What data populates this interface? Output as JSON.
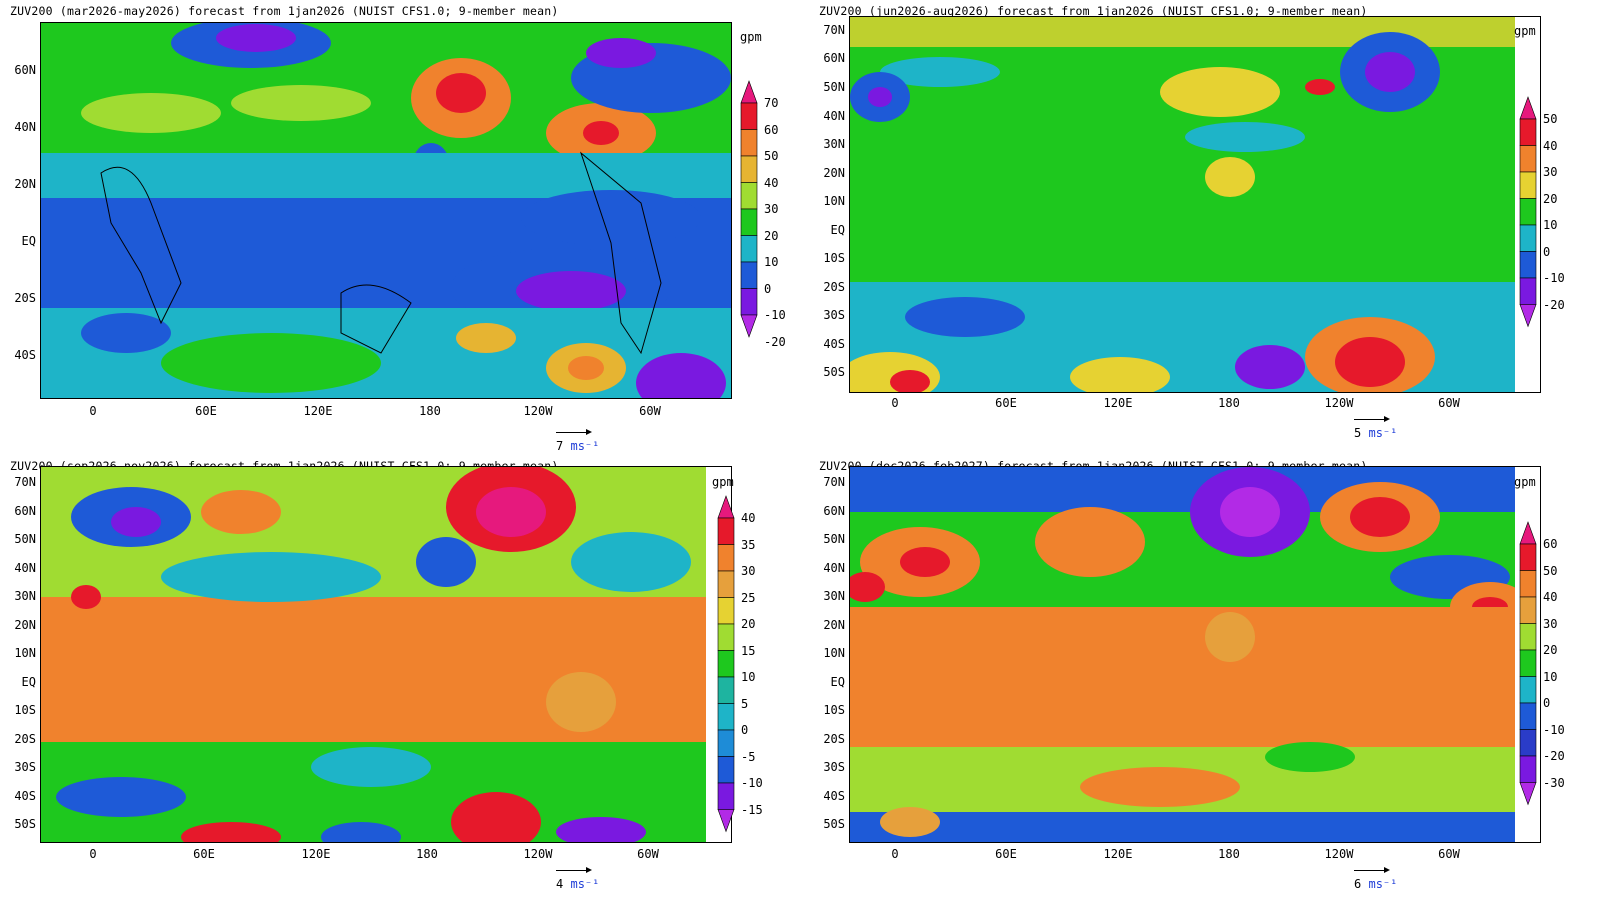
{
  "panels": [
    {
      "title": "ZUV200 (mar2026-may2026) forecast from 1jan2026 (NUIST CFS1.0; 9-member mean)",
      "lat_labels": [
        "60N",
        "40N",
        "20N",
        "EQ",
        "20S",
        "40S"
      ],
      "lon_labels": [
        "0",
        "60E",
        "120E",
        "180",
        "120W",
        "60W"
      ],
      "unit": "gpm",
      "colorbar_levels": [
        "70",
        "60",
        "50",
        "40",
        "30",
        "20",
        "10",
        "0",
        "-10",
        "-20"
      ],
      "colorbar_colors": [
        "#e6197d",
        "#e6192b",
        "#f0822d",
        "#e6b432",
        "#a0dc32",
        "#1ec81e",
        "#1eb4c8",
        "#1e5ad7",
        "#7a19e0",
        "#b22ae6"
      ],
      "vector_ref": "7",
      "vector_unit": "ms⁻¹"
    },
    {
      "title": "ZUV200 (jun2026-aug2026) forecast from 1jan2026 (NUIST CFS1.0; 9-member mean)",
      "lat_labels": [
        "70N",
        "60N",
        "50N",
        "40N",
        "30N",
        "20N",
        "10N",
        "EQ",
        "10S",
        "20S",
        "30S",
        "40S",
        "50S"
      ],
      "lon_labels": [
        "0",
        "60E",
        "120E",
        "180",
        "120W",
        "60W"
      ],
      "unit": "gpm",
      "colorbar_levels": [
        "50",
        "40",
        "30",
        "20",
        "10",
        "0",
        "-10",
        "-20"
      ],
      "colorbar_colors": [
        "#e6197d",
        "#e6192b",
        "#f0822d",
        "#e6d232",
        "#1ec81e",
        "#1eb4c8",
        "#1e5ad7",
        "#7a19e0",
        "#b22ae6"
      ],
      "vector_ref": "5",
      "vector_unit": "ms⁻¹"
    },
    {
      "title": "ZUV200 (sep2026-nov2026) forecast from 1jan2026 (NUIST CFS1.0; 9-member mean)",
      "lat_labels": [
        "70N",
        "60N",
        "50N",
        "40N",
        "30N",
        "20N",
        "10N",
        "EQ",
        "10S",
        "20S",
        "30S",
        "40S",
        "50S"
      ],
      "lon_labels": [
        "0",
        "60E",
        "120E",
        "180",
        "120W",
        "60W"
      ],
      "unit": "gpm",
      "colorbar_levels": [
        "40",
        "35",
        "30",
        "25",
        "20",
        "15",
        "10",
        "5",
        "0",
        "-5",
        "-10",
        "-15"
      ],
      "colorbar_colors": [
        "#e6197d",
        "#e6192b",
        "#f0822d",
        "#e6a03c",
        "#e6d232",
        "#a0dc32",
        "#1ec81e",
        "#1eb4a0",
        "#1eb4c8",
        "#1e8cd7",
        "#1e5ad7",
        "#7a19e0",
        "#b22ae6"
      ],
      "vector_ref": "4",
      "vector_unit": "ms⁻¹"
    },
    {
      "title": "ZUV200 (dec2026-feb2027) forecast from 1jan2026 (NUIST CFS1.0; 9-member mean)",
      "lat_labels": [
        "70N",
        "60N",
        "50N",
        "40N",
        "30N",
        "20N",
        "10N",
        "EQ",
        "10S",
        "20S",
        "30S",
        "40S",
        "50S"
      ],
      "lon_labels": [
        "0",
        "60E",
        "120E",
        "180",
        "120W",
        "60W"
      ],
      "unit": "gpm",
      "colorbar_levels": [
        "60",
        "50",
        "40",
        "30",
        "20",
        "10",
        "0",
        "-10",
        "-20",
        "-30"
      ],
      "colorbar_colors": [
        "#e6197d",
        "#e6192b",
        "#f0822d",
        "#e6a03c",
        "#a0dc32",
        "#1ec81e",
        "#1eb4c8",
        "#1e5ad7",
        "#2a3cc8",
        "#7a19e0",
        "#b22ae6"
      ],
      "vector_ref": "6",
      "vector_unit": "ms⁻¹"
    }
  ]
}
